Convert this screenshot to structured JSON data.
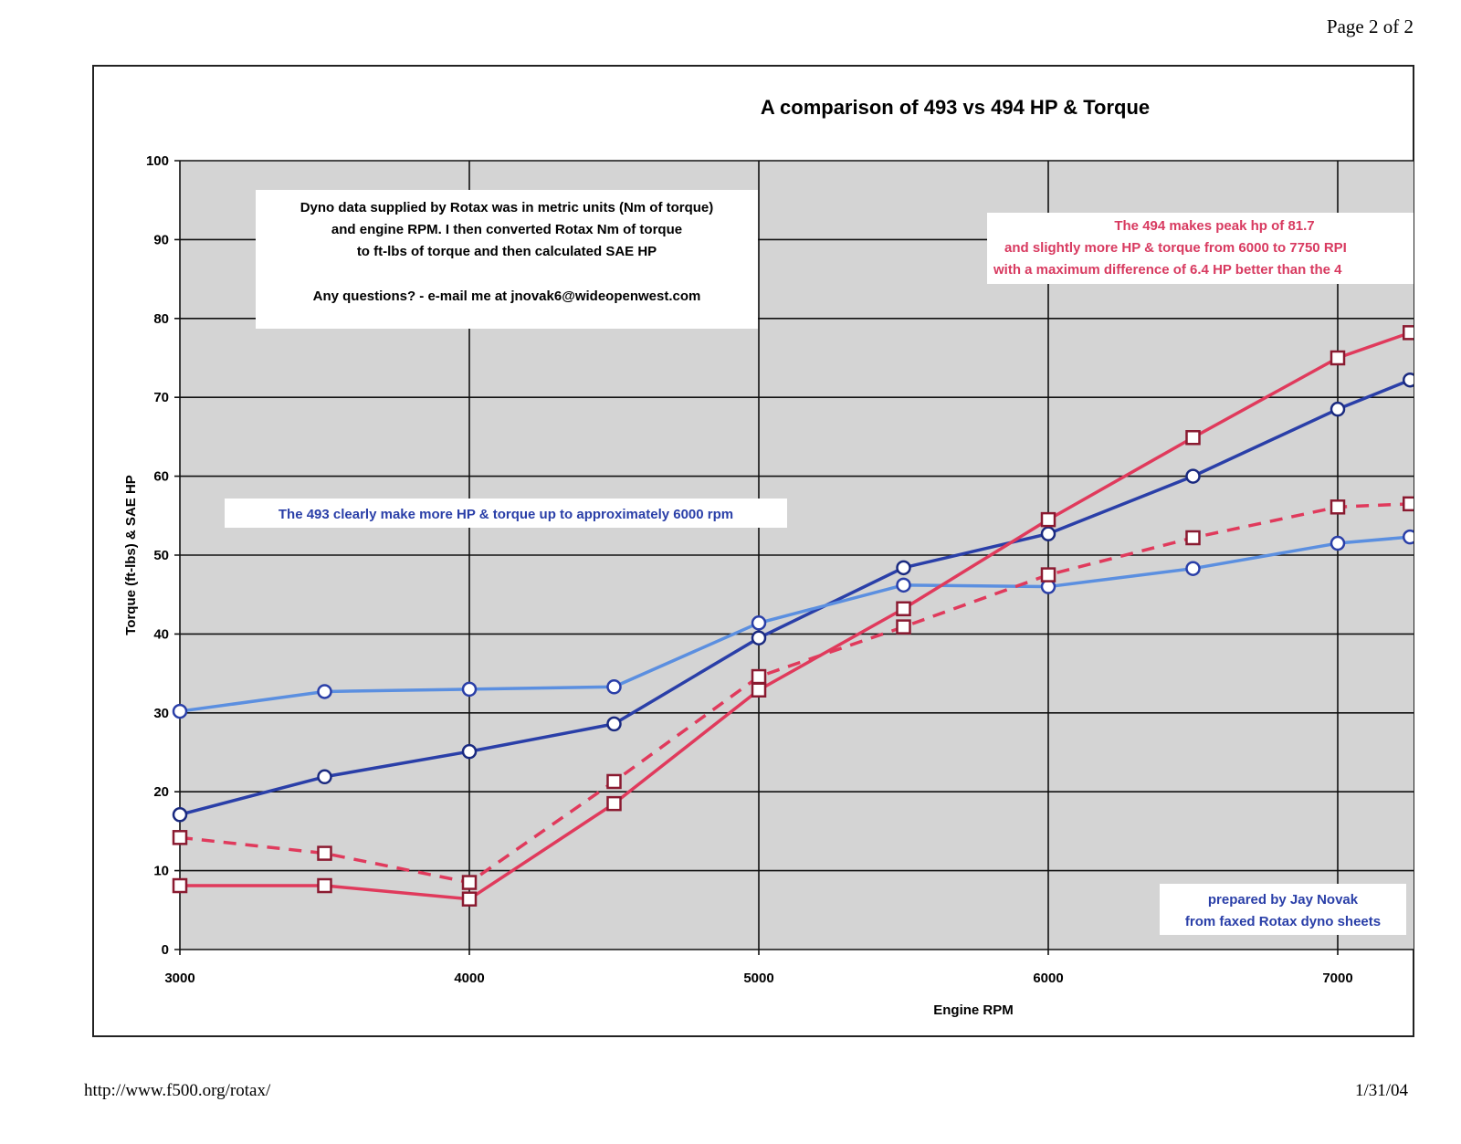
{
  "page": {
    "page_number": "Page 2 of 2",
    "footer_url": "http://www.f500.org/rotax/",
    "footer_date": "1/31/04"
  },
  "chart_data": {
    "type": "line",
    "title": "A comparison of 493 vs 494 HP & Torque",
    "xlabel": "Engine RPM",
    "ylabel": "Torque (ft-lbs) & SAE HP",
    "xlim": [
      3000,
      7260
    ],
    "ylim": [
      0,
      100
    ],
    "x_ticks": [
      "3000",
      "4000",
      "5000",
      "6000",
      "7000"
    ],
    "y_ticks": [
      "0",
      "10",
      "20",
      "30",
      "40",
      "50",
      "60",
      "70",
      "80",
      "90",
      "100"
    ],
    "grid": true,
    "x": [
      3000,
      3500,
      4000,
      4500,
      5000,
      5500,
      6000,
      6500,
      7000,
      7250
    ],
    "series": [
      {
        "color": "#2a3fa8",
        "style": "solid",
        "marker": "circle",
        "values": [
          17.1,
          21.9,
          25.1,
          28.6,
          39.5,
          48.4,
          52.7,
          60.0,
          68.5,
          72.2
        ]
      },
      {
        "color": "#5b8fe0",
        "style": "solid",
        "marker": "circle",
        "values": [
          30.2,
          32.7,
          33.0,
          33.3,
          41.4,
          46.2,
          46.0,
          48.3,
          51.5,
          52.3
        ]
      },
      {
        "color": "#e03a5c",
        "style": "solid",
        "marker": "square",
        "values": [
          8.1,
          8.1,
          6.4,
          18.5,
          32.9,
          43.2,
          54.5,
          64.9,
          75.0,
          78.2
        ]
      },
      {
        "color": "#e03a5c",
        "style": "dashed",
        "marker": "square",
        "values": [
          14.2,
          12.2,
          8.5,
          21.3,
          34.6,
          40.9,
          47.5,
          52.2,
          56.1,
          56.5
        ]
      }
    ],
    "annotations": {
      "notes_box": [
        "Dyno data supplied by Rotax was in metric units (Nm of torque)",
        "and engine RPM.  I then converted Rotax Nm of torque",
        "to ft-lbs of torque and then calculated SAE HP",
        "Any questions? - e-mail me at jnovak6@wideopenwest.com"
      ],
      "note_493": "The 493 clearly make more HP & torque up to approximately 6000 rpm",
      "note_494": [
        "The 494 makes peak hp of 81.7",
        "and slightly more HP & torque from 6000 to 7750 RPI",
        "with a maximum difference of 6.4 HP better than the 4"
      ],
      "credit": [
        "prepared by Jay Novak",
        "from faxed Rotax dyno sheets"
      ]
    },
    "colors": {
      "plot_bg": "#d4d4d4",
      "blue_text": "#2a3fa8",
      "red_text": "#d83a60"
    }
  }
}
